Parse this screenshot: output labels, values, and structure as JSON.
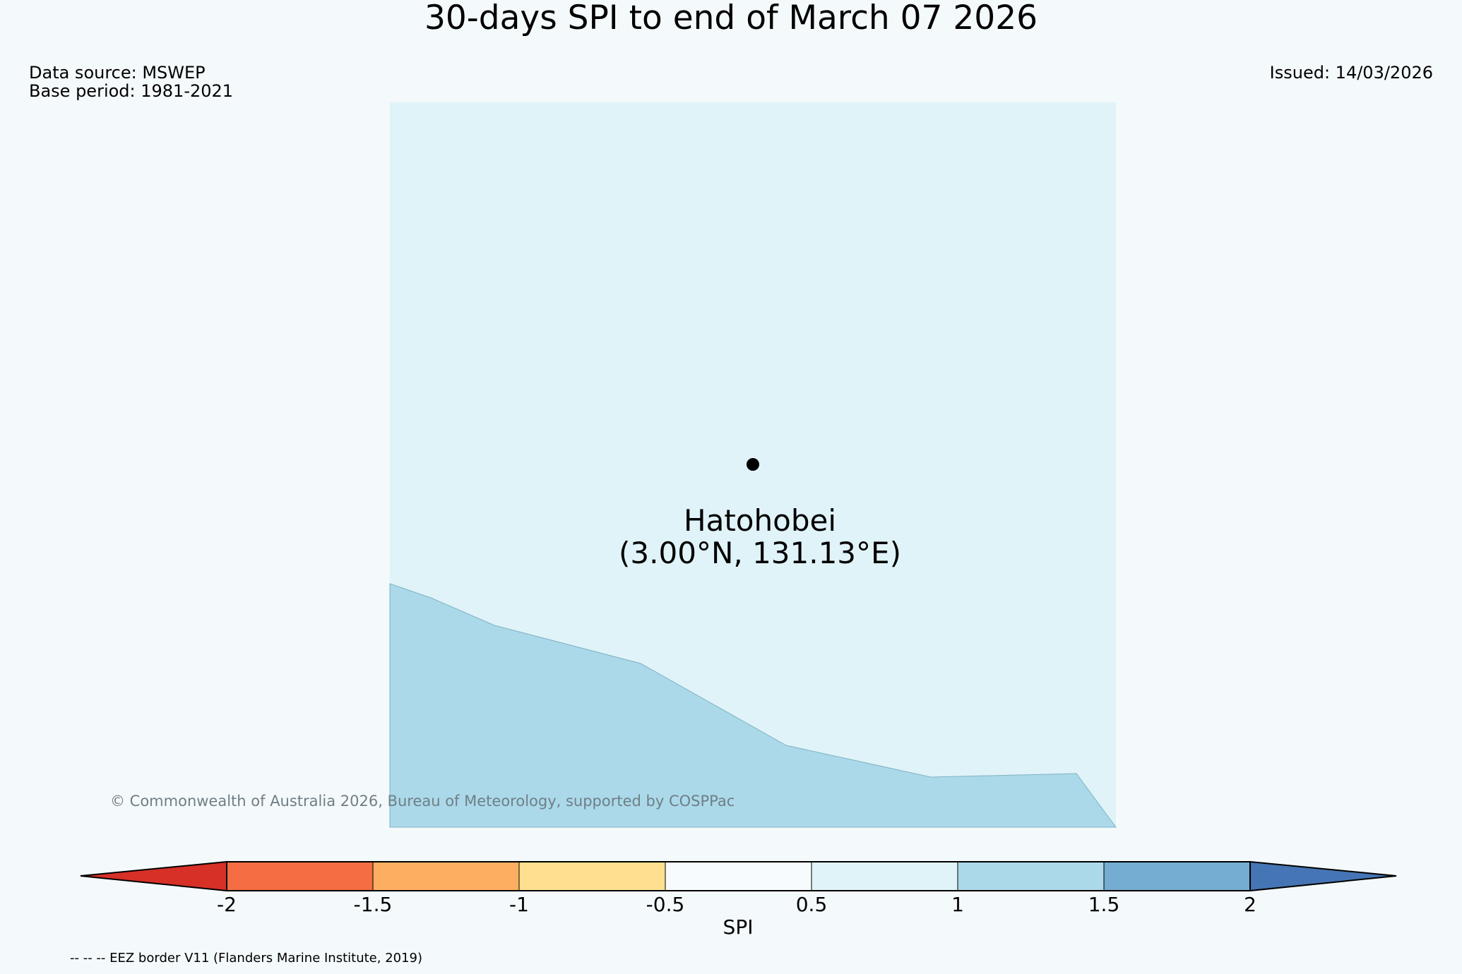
{
  "title": "30-days SPI to end of March 07 2026",
  "data_source": "Data source: MSWEP",
  "base_period": "Base period: 1981-2021",
  "issued": "Issued: 14/03/2026",
  "location": {
    "name": "Hatohobei",
    "coords": "(3.00°N, 131.13°E)"
  },
  "copyright": "© Commonwealth of Australia 2026, Bureau of Meteorology, supported by COSPPac",
  "footnote": "-- -- -- EEZ border V11 (Flanders Marine Institute, 2019)",
  "colorbar": {
    "label": "SPI",
    "ticks": [
      "-2",
      "-1.5",
      "-1",
      "-0.5",
      "0.5",
      "1",
      "1.5",
      "2"
    ],
    "colors": [
      "#d73027",
      "#f46d43",
      "#fdae61",
      "#fee090",
      "#f7fbfd",
      "#e0f3f8",
      "#abd9e9",
      "#74add1",
      "#4575b4"
    ]
  },
  "map_colors": {
    "background": "#e0f3f8",
    "region": "#abd9e9",
    "marker": "#000000"
  }
}
